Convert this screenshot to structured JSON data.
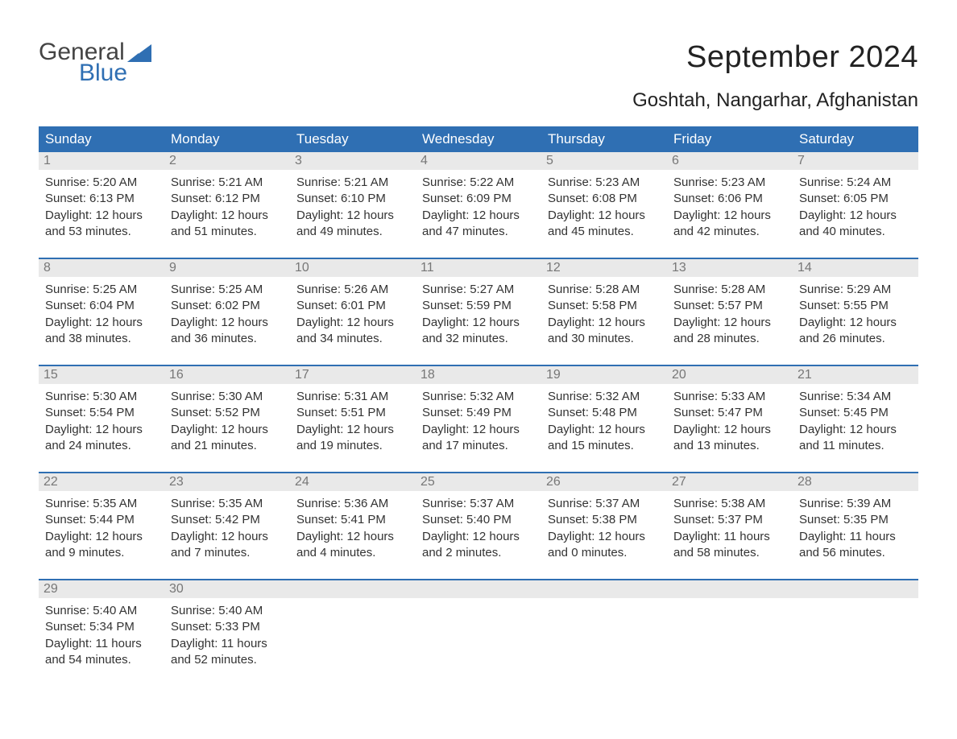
{
  "logo": {
    "word1": "General",
    "word2": "Blue",
    "tri_color": "#2f6fb3",
    "text_gray": "#444444"
  },
  "title": "September 2024",
  "location": "Goshtah, Nangarhar, Afghanistan",
  "header_bg": "#2f6fb3",
  "header_text_color": "#ffffff",
  "daynum_bg": "#e9e9e9",
  "daynum_color": "#777777",
  "body_text_color": "#333333",
  "week_border_color": "#2f6fb3",
  "background_color": "#ffffff",
  "font_family": "Arial",
  "columns": [
    "Sunday",
    "Monday",
    "Tuesday",
    "Wednesday",
    "Thursday",
    "Friday",
    "Saturday"
  ],
  "weeks": [
    [
      {
        "n": "1",
        "sunrise": "5:20 AM",
        "sunset": "6:13 PM",
        "d1": "Daylight: 12 hours",
        "d2": "and 53 minutes."
      },
      {
        "n": "2",
        "sunrise": "5:21 AM",
        "sunset": "6:12 PM",
        "d1": "Daylight: 12 hours",
        "d2": "and 51 minutes."
      },
      {
        "n": "3",
        "sunrise": "5:21 AM",
        "sunset": "6:10 PM",
        "d1": "Daylight: 12 hours",
        "d2": "and 49 minutes."
      },
      {
        "n": "4",
        "sunrise": "5:22 AM",
        "sunset": "6:09 PM",
        "d1": "Daylight: 12 hours",
        "d2": "and 47 minutes."
      },
      {
        "n": "5",
        "sunrise": "5:23 AM",
        "sunset": "6:08 PM",
        "d1": "Daylight: 12 hours",
        "d2": "and 45 minutes."
      },
      {
        "n": "6",
        "sunrise": "5:23 AM",
        "sunset": "6:06 PM",
        "d1": "Daylight: 12 hours",
        "d2": "and 42 minutes."
      },
      {
        "n": "7",
        "sunrise": "5:24 AM",
        "sunset": "6:05 PM",
        "d1": "Daylight: 12 hours",
        "d2": "and 40 minutes."
      }
    ],
    [
      {
        "n": "8",
        "sunrise": "5:25 AM",
        "sunset": "6:04 PM",
        "d1": "Daylight: 12 hours",
        "d2": "and 38 minutes."
      },
      {
        "n": "9",
        "sunrise": "5:25 AM",
        "sunset": "6:02 PM",
        "d1": "Daylight: 12 hours",
        "d2": "and 36 minutes."
      },
      {
        "n": "10",
        "sunrise": "5:26 AM",
        "sunset": "6:01 PM",
        "d1": "Daylight: 12 hours",
        "d2": "and 34 minutes."
      },
      {
        "n": "11",
        "sunrise": "5:27 AM",
        "sunset": "5:59 PM",
        "d1": "Daylight: 12 hours",
        "d2": "and 32 minutes."
      },
      {
        "n": "12",
        "sunrise": "5:28 AM",
        "sunset": "5:58 PM",
        "d1": "Daylight: 12 hours",
        "d2": "and 30 minutes."
      },
      {
        "n": "13",
        "sunrise": "5:28 AM",
        "sunset": "5:57 PM",
        "d1": "Daylight: 12 hours",
        "d2": "and 28 minutes."
      },
      {
        "n": "14",
        "sunrise": "5:29 AM",
        "sunset": "5:55 PM",
        "d1": "Daylight: 12 hours",
        "d2": "and 26 minutes."
      }
    ],
    [
      {
        "n": "15",
        "sunrise": "5:30 AM",
        "sunset": "5:54 PM",
        "d1": "Daylight: 12 hours",
        "d2": "and 24 minutes."
      },
      {
        "n": "16",
        "sunrise": "5:30 AM",
        "sunset": "5:52 PM",
        "d1": "Daylight: 12 hours",
        "d2": "and 21 minutes."
      },
      {
        "n": "17",
        "sunrise": "5:31 AM",
        "sunset": "5:51 PM",
        "d1": "Daylight: 12 hours",
        "d2": "and 19 minutes."
      },
      {
        "n": "18",
        "sunrise": "5:32 AM",
        "sunset": "5:49 PM",
        "d1": "Daylight: 12 hours",
        "d2": "and 17 minutes."
      },
      {
        "n": "19",
        "sunrise": "5:32 AM",
        "sunset": "5:48 PM",
        "d1": "Daylight: 12 hours",
        "d2": "and 15 minutes."
      },
      {
        "n": "20",
        "sunrise": "5:33 AM",
        "sunset": "5:47 PM",
        "d1": "Daylight: 12 hours",
        "d2": "and 13 minutes."
      },
      {
        "n": "21",
        "sunrise": "5:34 AM",
        "sunset": "5:45 PM",
        "d1": "Daylight: 12 hours",
        "d2": "and 11 minutes."
      }
    ],
    [
      {
        "n": "22",
        "sunrise": "5:35 AM",
        "sunset": "5:44 PM",
        "d1": "Daylight: 12 hours",
        "d2": "and 9 minutes."
      },
      {
        "n": "23",
        "sunrise": "5:35 AM",
        "sunset": "5:42 PM",
        "d1": "Daylight: 12 hours",
        "d2": "and 7 minutes."
      },
      {
        "n": "24",
        "sunrise": "5:36 AM",
        "sunset": "5:41 PM",
        "d1": "Daylight: 12 hours",
        "d2": "and 4 minutes."
      },
      {
        "n": "25",
        "sunrise": "5:37 AM",
        "sunset": "5:40 PM",
        "d1": "Daylight: 12 hours",
        "d2": "and 2 minutes."
      },
      {
        "n": "26",
        "sunrise": "5:37 AM",
        "sunset": "5:38 PM",
        "d1": "Daylight: 12 hours",
        "d2": "and 0 minutes."
      },
      {
        "n": "27",
        "sunrise": "5:38 AM",
        "sunset": "5:37 PM",
        "d1": "Daylight: 11 hours",
        "d2": "and 58 minutes."
      },
      {
        "n": "28",
        "sunrise": "5:39 AM",
        "sunset": "5:35 PM",
        "d1": "Daylight: 11 hours",
        "d2": "and 56 minutes."
      }
    ],
    [
      {
        "n": "29",
        "sunrise": "5:40 AM",
        "sunset": "5:34 PM",
        "d1": "Daylight: 11 hours",
        "d2": "and 54 minutes."
      },
      {
        "n": "30",
        "sunrise": "5:40 AM",
        "sunset": "5:33 PM",
        "d1": "Daylight: 11 hours",
        "d2": "and 52 minutes."
      },
      null,
      null,
      null,
      null,
      null
    ]
  ],
  "labels": {
    "sunrise_prefix": "Sunrise: ",
    "sunset_prefix": "Sunset: "
  }
}
